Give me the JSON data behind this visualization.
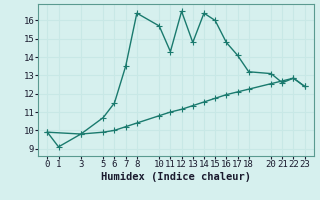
{
  "xlabel": "Humidex (Indice chaleur)",
  "bg_color": "#d6f0ee",
  "line_color": "#1a7a6e",
  "grid_color": "#c8e8e6",
  "x_ticks": [
    0,
    1,
    3,
    5,
    6,
    7,
    8,
    10,
    11,
    12,
    13,
    14,
    15,
    16,
    17,
    18,
    20,
    21,
    22,
    23
  ],
  "y_ticks": [
    9,
    10,
    11,
    12,
    13,
    14,
    15,
    16
  ],
  "ylim": [
    8.6,
    16.9
  ],
  "xlim": [
    -0.8,
    23.8
  ],
  "line1_x": [
    0,
    1,
    3,
    5,
    6,
    7,
    8,
    10,
    11,
    12,
    13,
    14,
    15,
    16,
    17,
    18,
    20,
    21,
    22,
    23
  ],
  "line1_y": [
    9.9,
    9.1,
    9.8,
    10.7,
    11.5,
    13.5,
    16.4,
    15.7,
    14.3,
    16.5,
    14.8,
    16.4,
    16.0,
    14.8,
    14.1,
    13.2,
    13.1,
    12.6,
    12.85,
    12.4
  ],
  "line2_x": [
    0,
    3,
    5,
    6,
    7,
    8,
    10,
    11,
    12,
    13,
    14,
    15,
    16,
    17,
    18,
    20,
    21,
    22,
    23
  ],
  "line2_y": [
    9.9,
    9.8,
    9.9,
    10.0,
    10.2,
    10.4,
    10.8,
    11.0,
    11.15,
    11.35,
    11.55,
    11.75,
    11.95,
    12.1,
    12.25,
    12.55,
    12.7,
    12.85,
    12.4
  ],
  "marker_size": 4,
  "linewidth": 1.0,
  "tick_fontsize": 6.5,
  "label_fontsize": 7.5
}
